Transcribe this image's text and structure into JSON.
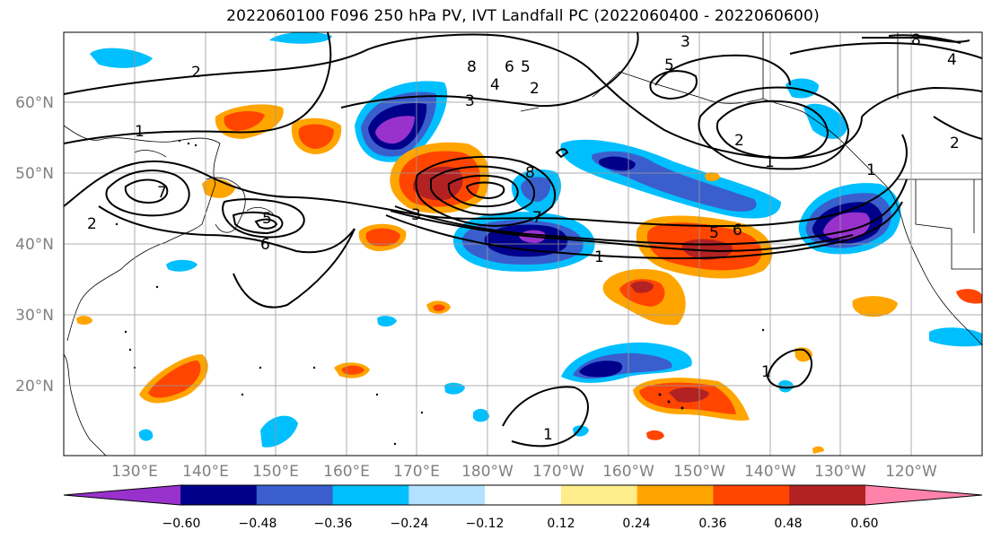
{
  "title": "2022060100 F096 250 hPa PV, IVT Landfall PC (2022060400 - 2022060600)",
  "lat_labels": [
    "60°N",
    "50°N",
    "40°N",
    "30°N",
    "20°N"
  ],
  "lon_labels": [
    "130°E",
    "140°E",
    "150°E",
    "160°E",
    "170°E",
    "180°W",
    "170°W",
    "160°W",
    "150°W",
    "140°W",
    "130°W",
    "120°W"
  ],
  "colorbar": {
    "tick_labels": [
      "−0.60",
      "−0.48",
      "−0.36",
      "−0.24",
      "−0.12",
      "0.12",
      "0.24",
      "0.36",
      "0.48",
      "0.60"
    ],
    "colors": [
      "#9932CC",
      "#00008B",
      "#3A5FCD",
      "#00BFFF",
      "#B2E2FF",
      "#FFFFFF",
      "#FFEC8B",
      "#FFA500",
      "#FF4500",
      "#B22222",
      "#FF82AB"
    ]
  },
  "contour_labels": [
    "2",
    "1",
    "2",
    "5",
    "6",
    "7",
    "3",
    "8",
    "7",
    "1",
    "3",
    "4",
    "5",
    "6",
    "2",
    "3",
    "8",
    "5",
    "2",
    "1",
    "1",
    "6",
    "5",
    "2",
    "8",
    "4",
    "1",
    "1"
  ]
}
